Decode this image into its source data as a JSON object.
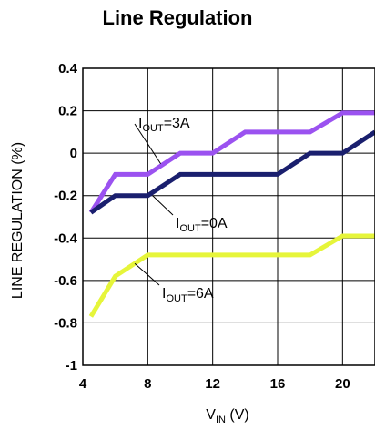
{
  "chart_data": {
    "type": "line",
    "title": "Line Regulation",
    "xlabel": {
      "main": "V",
      "sub": "IN",
      "unit": " (V)"
    },
    "ylabel": "LINE REGULATION (%)",
    "xlim": [
      4,
      22
    ],
    "ylim": [
      -1,
      0.4
    ],
    "x_ticks": [
      4,
      8,
      12,
      16,
      20
    ],
    "y_ticks": [
      0.4,
      0.2,
      0,
      -0.2,
      -0.4,
      -0.6,
      -0.8,
      -1
    ],
    "y_tick_labels": [
      "0.4",
      "0.2",
      "0",
      "-0.2",
      "-0.4",
      "-0.6",
      "-0.8",
      "-1"
    ],
    "grid": true,
    "series": [
      {
        "label": {
          "main": "I",
          "sub": "OUT",
          "suffix": "=3A"
        },
        "color": "#9b52f0",
        "x": [
          4.5,
          6,
          8,
          10,
          12,
          14,
          16,
          18,
          20,
          22
        ],
        "y": [
          -0.28,
          -0.1,
          -0.1,
          0,
          0,
          0.1,
          0.1,
          0.1,
          0.19,
          0.19
        ]
      },
      {
        "label": {
          "main": "I",
          "sub": "OUT",
          "suffix": "=0A"
        },
        "color": "#1a1f6e",
        "x": [
          4.5,
          6,
          8,
          10,
          12,
          14,
          16,
          18,
          20,
          22
        ],
        "y": [
          -0.28,
          -0.2,
          -0.2,
          -0.1,
          -0.1,
          -0.1,
          -0.1,
          0,
          0,
          0.1
        ]
      },
      {
        "label": {
          "main": "I",
          "sub": "OUT",
          "suffix": "=6A"
        },
        "color": "#e6f53a",
        "x": [
          4.5,
          6,
          8,
          10,
          12,
          14,
          16,
          18,
          20,
          22
        ],
        "y": [
          -0.77,
          -0.58,
          -0.48,
          -0.48,
          -0.48,
          -0.48,
          -0.48,
          -0.48,
          -0.39,
          -0.39
        ]
      }
    ]
  }
}
